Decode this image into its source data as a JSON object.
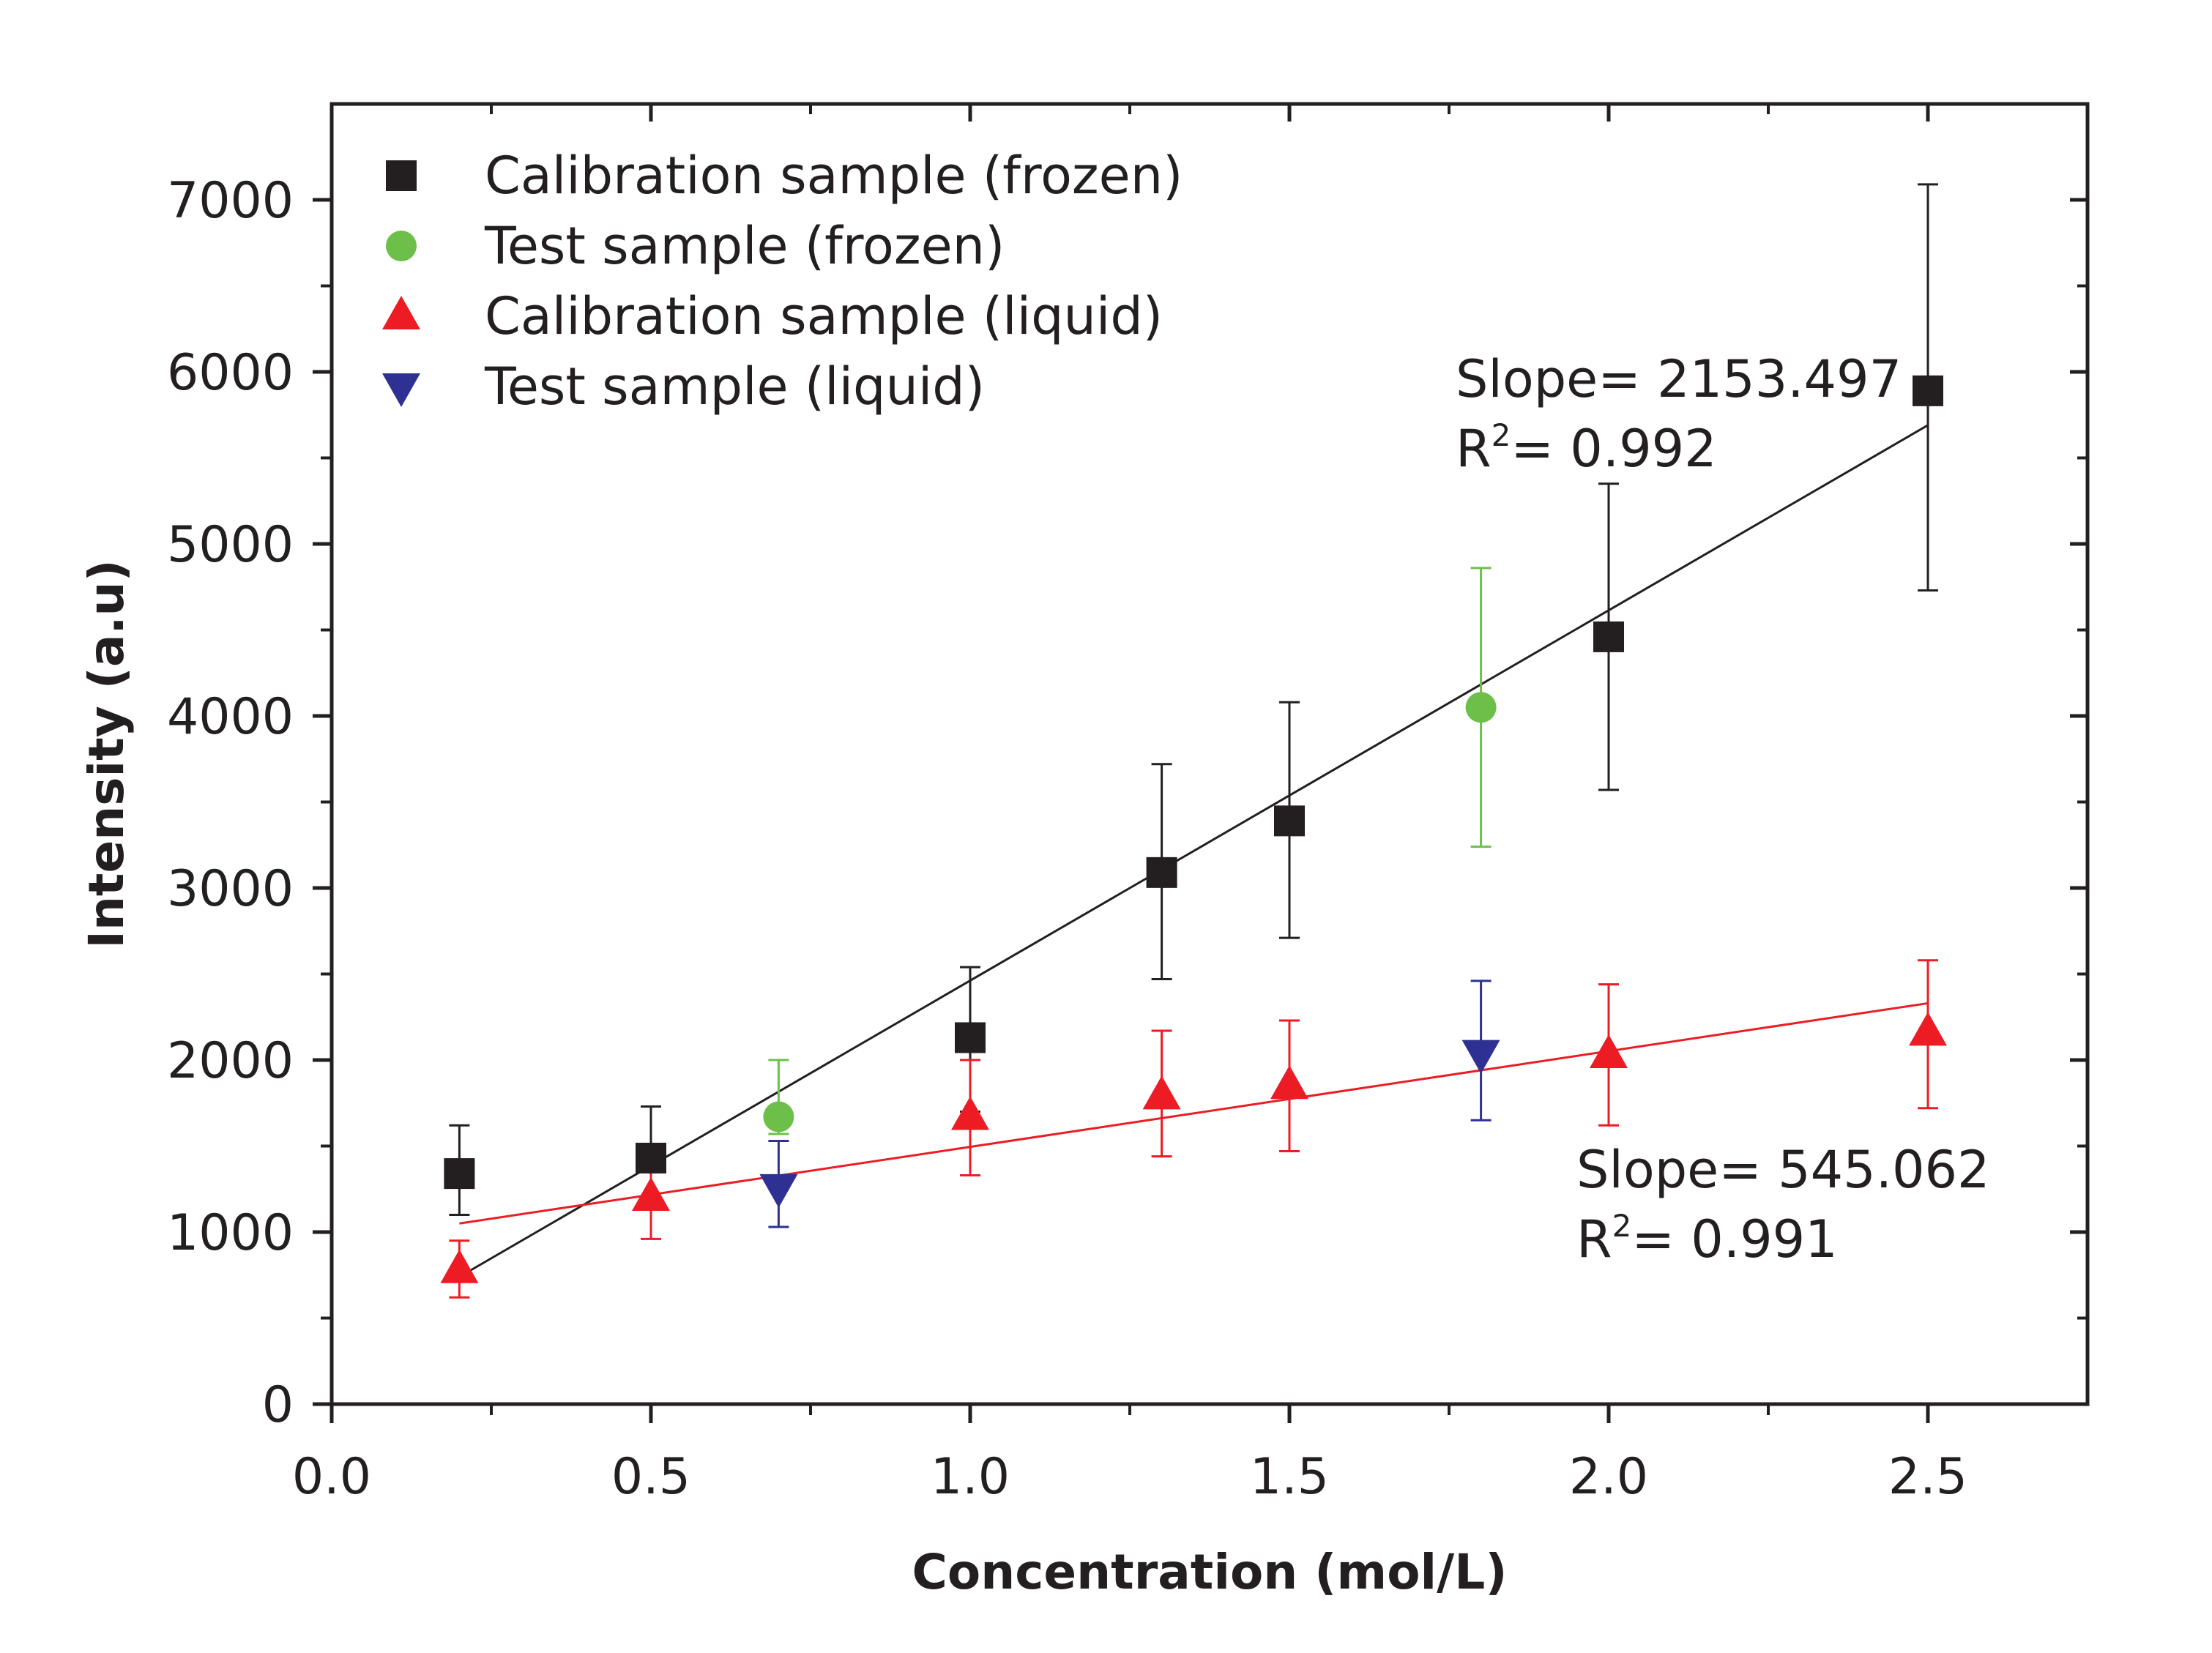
{
  "chart_data": {
    "type": "scatter",
    "title": "",
    "xlabel": "Concentration (mol/L)",
    "ylabel": "Intensity (a.u)",
    "xlim": [
      0.0,
      2.75
    ],
    "ylim": [
      0,
      7500
    ],
    "x_ticks": [
      0.0,
      0.5,
      1.0,
      1.5,
      2.0,
      2.5
    ],
    "x_tick_labels": [
      "0.0",
      "0.5",
      "1.0",
      "1.5",
      "2.0",
      "2.5"
    ],
    "y_ticks": [
      0,
      1000,
      2000,
      3000,
      4000,
      5000,
      6000,
      7000
    ],
    "y_tick_labels": [
      "0",
      "1000",
      "2000",
      "3000",
      "4000",
      "5000",
      "6000",
      "7000"
    ],
    "legend_position": "top-left",
    "grid": false,
    "series": [
      {
        "name": "Calibration sample (frozen)",
        "marker": "square",
        "color": "#231f20",
        "x": [
          0.2,
          0.5,
          1.0,
          1.3,
          1.5,
          2.0,
          2.5
        ],
        "y": [
          1340,
          1430,
          2130,
          3090,
          3390,
          4460,
          5890
        ],
        "err_low": [
          1100,
          1150,
          1700,
          2470,
          2710,
          3570,
          4730
        ],
        "err_high": [
          1620,
          1730,
          2540,
          3720,
          4080,
          5350,
          7090
        ]
      },
      {
        "name": "Test sample (frozen)",
        "marker": "circle",
        "color": "#6cc04a",
        "x": [
          0.7,
          1.8
        ],
        "y": [
          1670,
          4050
        ],
        "err_low": [
          1570,
          3240
        ],
        "err_high": [
          2000,
          4860
        ]
      },
      {
        "name": "Calibration sample (liquid)",
        "marker": "triangle-up",
        "color": "#ed1c24",
        "x": [
          0.2,
          0.5,
          1.0,
          1.3,
          1.5,
          2.0,
          2.5
        ],
        "y": [
          780,
          1200,
          1670,
          1790,
          1850,
          2030,
          2160
        ],
        "err_low": [
          620,
          960,
          1330,
          1440,
          1470,
          1620,
          1720
        ],
        "err_high": [
          950,
          1440,
          2000,
          2170,
          2230,
          2440,
          2580
        ]
      },
      {
        "name": "Test sample (liquid)",
        "marker": "triangle-down",
        "color": "#2e3192",
        "x": [
          0.7,
          1.8
        ],
        "y": [
          1260,
          2040
        ],
        "err_low": [
          1030,
          1650
        ],
        "err_high": [
          1530,
          2460
        ]
      }
    ],
    "fits": [
      {
        "name": "frozen fit",
        "color": "#231f20",
        "x": [
          0.2,
          2.5
        ],
        "y": [
          740,
          5690
        ]
      },
      {
        "name": "liquid fit",
        "color": "#ed1c24",
        "x": [
          0.2,
          2.5
        ],
        "y": [
          1050,
          2330
        ]
      }
    ],
    "annotations": [
      {
        "slope_text": "Slope= 2153.497",
        "r2_prefix": "R",
        "r2_sup": "2",
        "r2_text": "= 0.992"
      },
      {
        "slope_text": "Slope= 545.062",
        "r2_prefix": "R",
        "r2_sup": "2",
        "r2_text": "= 0.991"
      }
    ]
  }
}
